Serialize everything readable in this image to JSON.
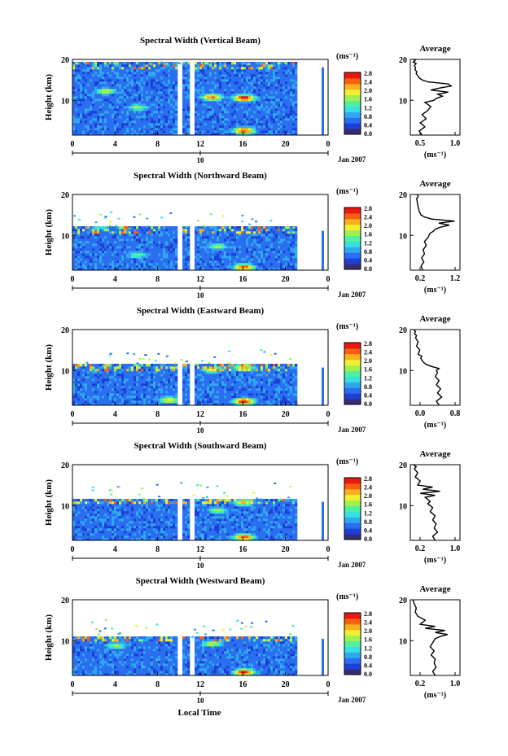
{
  "panels": [
    {
      "title": "Spectral Width (Vertical Beam)",
      "ylabel": "Height (km)",
      "yticks": [
        "20",
        "10"
      ],
      "xticks": [
        "0",
        "4",
        "8",
        "12",
        "16",
        "20",
        "0"
      ],
      "date_tick": "10",
      "date": "Jan 2007",
      "avg_title": "Average",
      "avg_yticks": [
        "20",
        "10"
      ],
      "avg_xticks": [
        "0.5",
        "1.0"
      ],
      "avg_xlabel": "(ms⁻¹)"
    },
    {
      "title": "Spectral Width (Northward Beam)",
      "ylabel": "Height (km)",
      "yticks": [
        "20",
        "10"
      ],
      "xticks": [
        "0",
        "4",
        "8",
        "12",
        "16",
        "20",
        "0"
      ],
      "date_tick": "10",
      "date": "Jan 2007",
      "avg_title": "Average",
      "avg_yticks": [
        "20",
        "10"
      ],
      "avg_xticks": [
        "0.2",
        "1.2"
      ],
      "avg_xlabel": "(ms⁻¹)"
    },
    {
      "title": "Spectral Width (Eastward Beam)",
      "ylabel": "Height (km)",
      "yticks": [
        "20",
        "10"
      ],
      "xticks": [
        "0",
        "4",
        "8",
        "12",
        "16",
        "20",
        "0"
      ],
      "date_tick": "10",
      "date": "Jan 2007",
      "avg_title": "Average",
      "avg_yticks": [
        "20",
        "10"
      ],
      "avg_xticks": [
        "0.0",
        "0.8"
      ],
      "avg_xlabel": "(ms⁻¹)"
    },
    {
      "title": "Spectral Width (Southward Beam)",
      "ylabel": "Height (km)",
      "yticks": [
        "20",
        "10"
      ],
      "xticks": [
        "0",
        "4",
        "8",
        "12",
        "16",
        "20",
        "0"
      ],
      "date_tick": "10",
      "date": "Jan 2007",
      "avg_title": "Average",
      "avg_yticks": [
        "20",
        "10"
      ],
      "avg_xticks": [
        "0.2",
        "1.0"
      ],
      "avg_xlabel": "(ms⁻¹)"
    },
    {
      "title": "Spectral Width (Westward Beam)",
      "ylabel": "Height (km)",
      "yticks": [
        "20",
        "10"
      ],
      "xticks": [
        "0",
        "4",
        "8",
        "12",
        "16",
        "20",
        "0"
      ],
      "date_tick": "10",
      "date": "Jan 2007",
      "avg_title": "Average",
      "avg_yticks": [
        "20",
        "10"
      ],
      "avg_xticks": [
        "0.2",
        "1.0"
      ],
      "avg_xlabel": "(ms⁻¹)"
    }
  ],
  "colorbar": {
    "unit": "(ms⁻¹)",
    "labels": [
      "2.8",
      "2.4",
      "2.0",
      "1.6",
      "1.2",
      "0.8",
      "0.4",
      "0.0"
    ],
    "colors": [
      "#3a2a72",
      "#1c3fd6",
      "#2a6ff0",
      "#30a8f0",
      "#38e0e0",
      "#50f0a0",
      "#a0f050",
      "#f0f030",
      "#f8b020",
      "#f86010",
      "#e81810"
    ]
  },
  "x_axis_label": "Local Time",
  "chart_data": [
    {
      "type": "heatmap",
      "title": "Spectral Width (Vertical Beam)",
      "xlabel": "Local Time",
      "ylabel": "Height (km)",
      "date": "Jan 2007",
      "x_range_hours": [
        0,
        24
      ],
      "ylim_km": [
        1.5,
        20
      ],
      "colorbar_range": [
        0.0,
        2.8
      ],
      "colorbar_unit": "ms⁻¹",
      "data_top_km": 19.0,
      "data_gaps_hours": [
        [
          9.7,
          10.2
        ],
        [
          10.9,
          11.3
        ]
      ],
      "data_end_hour": 21.0,
      "hotspots": [
        {
          "hour": 13.0,
          "km": 10.5,
          "v": 2.4
        },
        {
          "hour": 16.0,
          "km": 10.3,
          "v": 2.8
        },
        {
          "hour": 16.0,
          "km": 2.3,
          "v": 2.6
        },
        {
          "hour": 3.0,
          "km": 12.0,
          "v": 1.8
        },
        {
          "hour": 6.0,
          "km": 8.0,
          "v": 1.6
        }
      ]
    },
    {
      "type": "line",
      "title": "Average",
      "xlabel": "ms⁻¹",
      "ylabel": "Height (km)",
      "xlim": [
        0.25,
        1.1
      ],
      "ylim": [
        1.5,
        20
      ],
      "x": [
        0.45,
        0.4,
        0.5,
        0.42,
        0.52,
        0.45,
        0.55,
        0.6,
        0.5,
        0.65,
        0.7,
        0.8,
        0.72,
        0.9,
        0.6,
        0.75,
        0.95,
        0.9,
        0.55,
        0.45,
        0.4,
        0.38,
        0.35,
        0.36,
        0.33,
        0.34,
        0.32,
        0.35,
        0.3,
        0.33,
        0.32,
        0.35
      ],
      "y": [
        1.5,
        2.5,
        3.5,
        4.5,
        5.5,
        6.5,
        7.5,
        8.5,
        9.5,
        10.0,
        10.5,
        11.0,
        11.5,
        12.0,
        12.5,
        13.0,
        13.5,
        14.0,
        14.5,
        15.0,
        15.5,
        16.0,
        16.5,
        17.0,
        17.5,
        18.0,
        18.5,
        19.0,
        19.3,
        19.6,
        19.8,
        20.0
      ]
    },
    {
      "type": "heatmap",
      "title": "Spectral Width (Northward Beam)",
      "xlabel": "Local Time",
      "ylabel": "Height (km)",
      "date": "Jan 2007",
      "x_range_hours": [
        0,
        24
      ],
      "ylim_km": [
        1.5,
        20
      ],
      "colorbar_range": [
        0.0,
        2.8
      ],
      "colorbar_unit": "ms⁻¹",
      "data_top_km": 11.7,
      "data_gaps_hours": [
        [
          9.7,
          10.2
        ],
        [
          10.9,
          11.3
        ]
      ],
      "data_end_hour": 21.0,
      "hotspots": [
        {
          "hour": 2.5,
          "km": 12.5,
          "v": 2.6
        },
        {
          "hour": 16.0,
          "km": 2.0,
          "v": 2.6
        },
        {
          "hour": 13.5,
          "km": 7.0,
          "v": 1.6
        },
        {
          "hour": 6.0,
          "km": 5.0,
          "v": 1.4
        }
      ]
    },
    {
      "type": "line",
      "title": "Average",
      "xlabel": "ms⁻¹",
      "ylabel": "Height (km)",
      "xlim": [
        0.0,
        1.4
      ],
      "ylim": [
        1.5,
        20
      ],
      "x": [
        0.35,
        0.3,
        0.38,
        0.32,
        0.4,
        0.36,
        0.45,
        0.4,
        0.5,
        0.55,
        0.65,
        0.7,
        0.85,
        1.1,
        0.8,
        1.25,
        0.6,
        0.4,
        0.3,
        0.25,
        0.22,
        0.2,
        0.18,
        0.22,
        0.2
      ],
      "y": [
        1.5,
        2.5,
        3.5,
        4.5,
        5.5,
        6.5,
        7.5,
        8.5,
        9.5,
        10.5,
        11.0,
        11.5,
        12.0,
        12.5,
        13.0,
        13.5,
        14.0,
        14.5,
        15.0,
        16.0,
        17.0,
        18.0,
        19.0,
        19.5,
        20.0
      ]
    },
    {
      "type": "heatmap",
      "title": "Spectral Width (Eastward Beam)",
      "xlabel": "Local Time",
      "ylabel": "Height (km)",
      "date": "Jan 2007",
      "x_range_hours": [
        0,
        24
      ],
      "ylim_km": [
        1.5,
        20
      ],
      "colorbar_range": [
        0.0,
        2.8
      ],
      "colorbar_unit": "ms⁻¹",
      "data_top_km": 11.3,
      "data_gaps_hours": [
        [
          9.7,
          10.2
        ],
        [
          10.9,
          11.3
        ]
      ],
      "data_end_hour": 21.0,
      "hotspots": [
        {
          "hour": 16.0,
          "km": 2.2,
          "v": 2.8
        },
        {
          "hour": 13.0,
          "km": 10.0,
          "v": 2.0
        },
        {
          "hour": 16.0,
          "km": 10.5,
          "v": 2.2
        },
        {
          "hour": 9.0,
          "km": 2.5,
          "v": 2.0
        }
      ]
    },
    {
      "type": "line",
      "title": "Average",
      "xlabel": "ms⁻¹",
      "ylabel": "Height (km)",
      "xlim": [
        0.0,
        0.95
      ],
      "ylim": [
        1.5,
        20
      ],
      "x": [
        0.55,
        0.5,
        0.6,
        0.52,
        0.58,
        0.5,
        0.55,
        0.48,
        0.52,
        0.5,
        0.55,
        0.4,
        0.3,
        0.25,
        0.2,
        0.22,
        0.15,
        0.18,
        0.12,
        0.15,
        0.1,
        0.12,
        0.08,
        0.1,
        0.07
      ],
      "y": [
        1.5,
        2.5,
        3.5,
        4.5,
        5.5,
        6.5,
        7.5,
        8.5,
        9.5,
        10.0,
        10.5,
        11.0,
        11.5,
        12.0,
        13.0,
        13.5,
        14.0,
        15.0,
        16.0,
        17.0,
        18.0,
        18.5,
        19.0,
        19.5,
        20.0
      ]
    },
    {
      "type": "heatmap",
      "title": "Spectral Width (Southward Beam)",
      "xlabel": "Local Time",
      "ylabel": "Height (km)",
      "date": "Jan 2007",
      "x_range_hours": [
        0,
        24
      ],
      "ylim_km": [
        1.5,
        20
      ],
      "colorbar_range": [
        0.0,
        2.8
      ],
      "colorbar_unit": "ms⁻¹",
      "data_top_km": 11.5,
      "data_gaps_hours": [
        [
          9.7,
          10.2
        ],
        [
          10.9,
          11.3
        ]
      ],
      "data_end_hour": 21.0,
      "hotspots": [
        {
          "hour": 2.5,
          "km": 12.7,
          "v": 2.6
        },
        {
          "hour": 16.0,
          "km": 2.0,
          "v": 2.6
        },
        {
          "hour": 16.0,
          "km": 10.5,
          "v": 2.0
        },
        {
          "hour": 13.5,
          "km": 8.5,
          "v": 1.6
        }
      ]
    },
    {
      "type": "line",
      "title": "Average",
      "xlabel": "ms⁻¹",
      "ylabel": "Height (km)",
      "xlim": [
        0.1,
        1.1
      ],
      "ylim": [
        1.5,
        20
      ],
      "x": [
        0.6,
        0.55,
        0.65,
        0.58,
        0.62,
        0.55,
        0.6,
        0.5,
        0.55,
        0.45,
        0.5,
        0.4,
        0.6,
        0.3,
        0.7,
        0.35,
        0.55,
        0.25,
        0.3,
        0.2,
        0.25,
        0.18,
        0.22,
        0.16
      ],
      "y": [
        1.5,
        2.5,
        3.5,
        4.5,
        5.5,
        6.5,
        7.5,
        8.5,
        9.5,
        10.5,
        11.0,
        12.0,
        12.5,
        13.0,
        13.5,
        14.0,
        14.5,
        15.0,
        16.0,
        17.0,
        18.0,
        19.0,
        19.5,
        20.0
      ]
    },
    {
      "type": "heatmap",
      "title": "Spectral Width (Westward Beam)",
      "xlabel": "Local Time",
      "ylabel": "Height (km)",
      "date": "Jan 2007",
      "x_range_hours": [
        0,
        24
      ],
      "ylim_km": [
        1.5,
        20
      ],
      "colorbar_range": [
        0.0,
        2.8
      ],
      "colorbar_unit": "ms⁻¹",
      "data_top_km": 11.0,
      "data_gaps_hours": [
        [
          9.7,
          10.2
        ],
        [
          10.9,
          11.3
        ]
      ],
      "data_end_hour": 21.0,
      "hotspots": [
        {
          "hour": 2.5,
          "km": 12.3,
          "v": 2.4
        },
        {
          "hour": 16.0,
          "km": 2.0,
          "v": 2.8
        },
        {
          "hour": 13.0,
          "km": 9.0,
          "v": 1.8
        },
        {
          "hour": 4.0,
          "km": 8.5,
          "v": 1.6
        }
      ]
    },
    {
      "type": "line",
      "title": "Average",
      "xlabel": "ms⁻¹",
      "ylabel": "Height (km)",
      "xlim": [
        0.1,
        1.1
      ],
      "ylim": [
        1.5,
        20
      ],
      "x": [
        0.6,
        0.55,
        0.62,
        0.58,
        0.6,
        0.52,
        0.58,
        0.5,
        0.55,
        0.6,
        0.7,
        0.85,
        0.6,
        0.8,
        0.4,
        0.6,
        0.3,
        0.4,
        0.25,
        0.2,
        0.22,
        0.18,
        0.15
      ],
      "y": [
        1.5,
        2.5,
        3.5,
        4.5,
        5.5,
        6.5,
        7.5,
        8.5,
        9.5,
        10.5,
        11.0,
        11.5,
        12.0,
        12.5,
        13.0,
        13.5,
        14.0,
        15.0,
        16.0,
        17.0,
        18.0,
        19.0,
        20.0
      ]
    }
  ]
}
